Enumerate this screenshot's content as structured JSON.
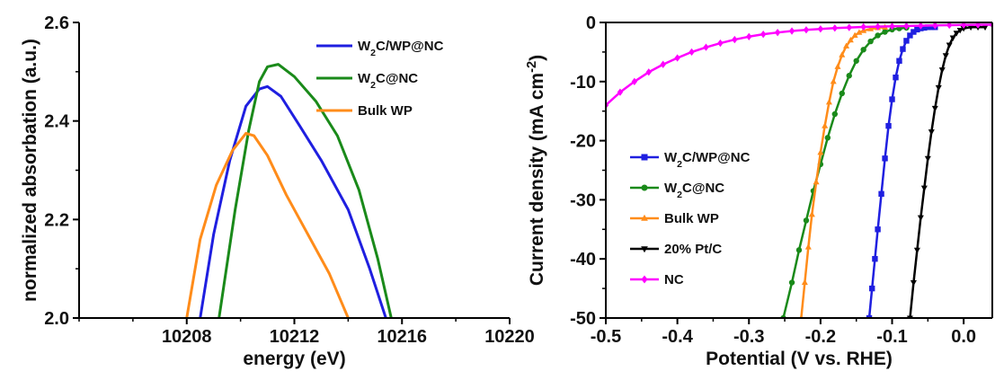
{
  "chart_data": [
    {
      "type": "line",
      "xlabel": "energy (eV)",
      "ylabel": "normalized absorbation (a.u.)",
      "xlim": [
        10204,
        10220
      ],
      "ylim": [
        2.0,
        2.6
      ],
      "x_ticks": [
        "10208",
        "10212",
        "10216",
        "10220"
      ],
      "y_ticks": [
        "2.0",
        "2.2",
        "2.4",
        "2.6"
      ],
      "grid": false,
      "legend_position": "top-right",
      "series": [
        {
          "name": "W2C/WP@NC",
          "label_parts": [
            {
              "text": "W"
            },
            {
              "text": "2",
              "sub": true
            },
            {
              "text": "C/WP@NC"
            }
          ],
          "color": "#1f1fe0",
          "x": [
            10208.5,
            10209.0,
            10209.6,
            10210.2,
            10210.7,
            10211.0,
            10211.5,
            10212.2,
            10213.0,
            10214.0,
            10214.8,
            10215.4
          ],
          "y": [
            2.0,
            2.17,
            2.32,
            2.43,
            2.465,
            2.47,
            2.45,
            2.39,
            2.32,
            2.22,
            2.1,
            2.0
          ]
        },
        {
          "name": "W2C@NC",
          "label_parts": [
            {
              "text": "W"
            },
            {
              "text": "2",
              "sub": true
            },
            {
              "text": "C@NC"
            }
          ],
          "color": "#1a8a1a",
          "x": [
            10209.2,
            10209.8,
            10210.3,
            10210.7,
            10211.0,
            10211.4,
            10212.0,
            10212.8,
            10213.6,
            10214.4,
            10215.1,
            10215.6
          ],
          "y": [
            2.0,
            2.22,
            2.38,
            2.48,
            2.51,
            2.515,
            2.49,
            2.44,
            2.37,
            2.26,
            2.12,
            2.0
          ]
        },
        {
          "name": "Bulk WP",
          "label_parts": [
            {
              "text": "Bulk WP"
            }
          ],
          "color": "#ff8c1a",
          "x": [
            10208.0,
            10208.5,
            10209.1,
            10209.7,
            10210.2,
            10210.5,
            10211.0,
            10211.7,
            10212.5,
            10213.3,
            10214.0
          ],
          "y": [
            2.0,
            2.16,
            2.27,
            2.34,
            2.375,
            2.37,
            2.33,
            2.25,
            2.17,
            2.09,
            2.0
          ]
        }
      ]
    },
    {
      "type": "line",
      "xlabel": "Potential (V vs. RHE)",
      "ylabel_parts": [
        {
          "text": "Current density (mA cm"
        },
        {
          "text": "-2",
          "sup": true
        },
        {
          "text": ")"
        }
      ],
      "xlim": [
        -0.5,
        0.04
      ],
      "ylim": [
        -50,
        0
      ],
      "x_ticks": [
        "-0.5",
        "-0.4",
        "-0.3",
        "-0.2",
        "-0.1",
        "0.0"
      ],
      "y_ticks": [
        "0",
        "-10",
        "-20",
        "-30",
        "-40",
        "-50"
      ],
      "grid": false,
      "legend_position": "bottom-left",
      "series": [
        {
          "name": "W2C/WP@NC",
          "label_parts": [
            {
              "text": "W"
            },
            {
              "text": "2",
              "sub": true
            },
            {
              "text": "C/WP@NC"
            }
          ],
          "color": "#1f1fe0",
          "marker": "square",
          "x": [
            -0.132,
            -0.128,
            -0.124,
            -0.12,
            -0.115,
            -0.11,
            -0.105,
            -0.1,
            -0.095,
            -0.09,
            -0.085,
            -0.08,
            -0.075,
            -0.07,
            -0.065,
            -0.06,
            -0.055,
            -0.05,
            -0.045,
            -0.04
          ],
          "y": [
            -50,
            -45,
            -40,
            -35,
            -29,
            -23,
            -17.5,
            -13,
            -9.3,
            -6.5,
            -4.5,
            -3.1,
            -2.2,
            -1.6,
            -1.2,
            -1.0,
            -0.9,
            -0.8,
            -0.8,
            -0.8
          ]
        },
        {
          "name": "W2C@NC",
          "label_parts": [
            {
              "text": "W"
            },
            {
              "text": "2",
              "sub": true
            },
            {
              "text": "C@NC"
            }
          ],
          "color": "#1a8a1a",
          "marker": "circle",
          "x": [
            -0.252,
            -0.24,
            -0.23,
            -0.22,
            -0.21,
            -0.2,
            -0.19,
            -0.18,
            -0.17,
            -0.16,
            -0.15,
            -0.14,
            -0.13,
            -0.12,
            -0.11,
            -0.1,
            -0.09,
            -0.08
          ],
          "y": [
            -50,
            -44,
            -38.5,
            -33.5,
            -28.5,
            -24,
            -19.5,
            -15.5,
            -12,
            -9,
            -6.5,
            -4.6,
            -3.2,
            -2.2,
            -1.6,
            -1.2,
            -1.0,
            -0.9
          ]
        },
        {
          "name": "Bulk WP",
          "label_parts": [
            {
              "text": "Bulk WP"
            }
          ],
          "color": "#ff8c1a",
          "marker": "triangle-up",
          "x": [
            -0.227,
            -0.222,
            -0.217,
            -0.212,
            -0.206,
            -0.2,
            -0.194,
            -0.188,
            -0.182,
            -0.176,
            -0.17,
            -0.164,
            -0.158,
            -0.152,
            -0.146,
            -0.14,
            -0.13,
            -0.12,
            -0.11
          ],
          "y": [
            -50,
            -44,
            -38,
            -32.5,
            -27,
            -22,
            -17.5,
            -13.5,
            -10,
            -7.5,
            -5.5,
            -4,
            -3,
            -2.2,
            -1.7,
            -1.4,
            -1.1,
            -0.9,
            -0.8
          ]
        },
        {
          "name": "20% Pt/C",
          "label_parts": [
            {
              "text": "20% Pt/C"
            }
          ],
          "color": "#000000",
          "marker": "triangle-down",
          "x": [
            -0.075,
            -0.07,
            -0.065,
            -0.06,
            -0.055,
            -0.05,
            -0.045,
            -0.04,
            -0.035,
            -0.03,
            -0.025,
            -0.02,
            -0.015,
            -0.01,
            -0.005,
            0.0,
            0.01,
            0.02,
            0.03
          ],
          "y": [
            -50,
            -44,
            -38.5,
            -33,
            -28,
            -23,
            -18.5,
            -14.5,
            -11,
            -8,
            -5.6,
            -3.8,
            -2.6,
            -1.8,
            -1.3,
            -1.0,
            -0.8,
            -0.8,
            -0.8
          ]
        },
        {
          "name": "NC",
          "label_parts": [
            {
              "text": "NC"
            }
          ],
          "color": "#ff00ff",
          "marker": "diamond",
          "x": [
            -0.5,
            -0.48,
            -0.46,
            -0.44,
            -0.42,
            -0.4,
            -0.38,
            -0.36,
            -0.34,
            -0.32,
            -0.3,
            -0.28,
            -0.26,
            -0.24,
            -0.22,
            -0.2,
            -0.18,
            -0.16,
            -0.14,
            -0.12,
            -0.1,
            -0.08,
            -0.06,
            -0.04,
            -0.02,
            0.0,
            0.02,
            0.04
          ],
          "y": [
            -14,
            -11.8,
            -10,
            -8.4,
            -7.1,
            -6.0,
            -5.0,
            -4.2,
            -3.5,
            -2.9,
            -2.4,
            -2.0,
            -1.7,
            -1.45,
            -1.25,
            -1.1,
            -0.95,
            -0.85,
            -0.75,
            -0.7,
            -0.65,
            -0.6,
            -0.55,
            -0.5,
            -0.45,
            -0.42,
            -0.4,
            -0.38
          ]
        }
      ]
    }
  ]
}
